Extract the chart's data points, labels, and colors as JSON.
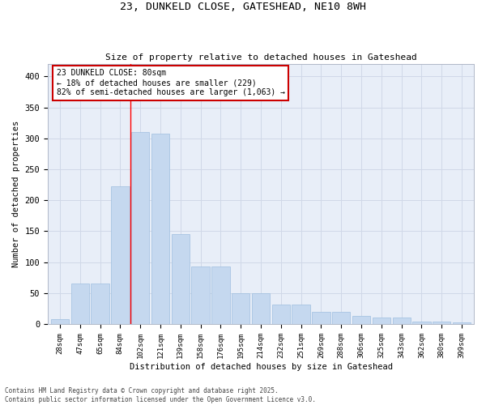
{
  "title1": "23, DUNKELD CLOSE, GATESHEAD, NE10 8WH",
  "title2": "Size of property relative to detached houses in Gateshead",
  "xlabel": "Distribution of detached houses by size in Gateshead",
  "ylabel": "Number of detached properties",
  "categories": [
    "28sqm",
    "47sqm",
    "65sqm",
    "84sqm",
    "102sqm",
    "121sqm",
    "139sqm",
    "158sqm",
    "176sqm",
    "195sqm",
    "214sqm",
    "232sqm",
    "251sqm",
    "269sqm",
    "288sqm",
    "306sqm",
    "325sqm",
    "343sqm",
    "362sqm",
    "380sqm",
    "399sqm"
  ],
  "values": [
    8,
    65,
    65,
    222,
    310,
    308,
    145,
    93,
    93,
    50,
    50,
    31,
    31,
    20,
    20,
    13,
    10,
    10,
    4,
    4,
    3
  ],
  "bar_color": "#c5d8ef",
  "bar_edge_color": "#9fbfdf",
  "grid_color": "#d0d8e8",
  "bg_color": "#e8eef8",
  "annotation_box_color": "#cc0000",
  "property_label": "23 DUNKELD CLOSE: 80sqm",
  "annotation_line1": "← 18% of detached houses are smaller (229)",
  "annotation_line2": "82% of semi-detached houses are larger (1,063) →",
  "red_line_x": 3.5,
  "ylim": [
    0,
    420
  ],
  "yticks": [
    0,
    50,
    100,
    150,
    200,
    250,
    300,
    350,
    400
  ],
  "footer1": "Contains HM Land Registry data © Crown copyright and database right 2025.",
  "footer2": "Contains public sector information licensed under the Open Government Licence v3.0."
}
